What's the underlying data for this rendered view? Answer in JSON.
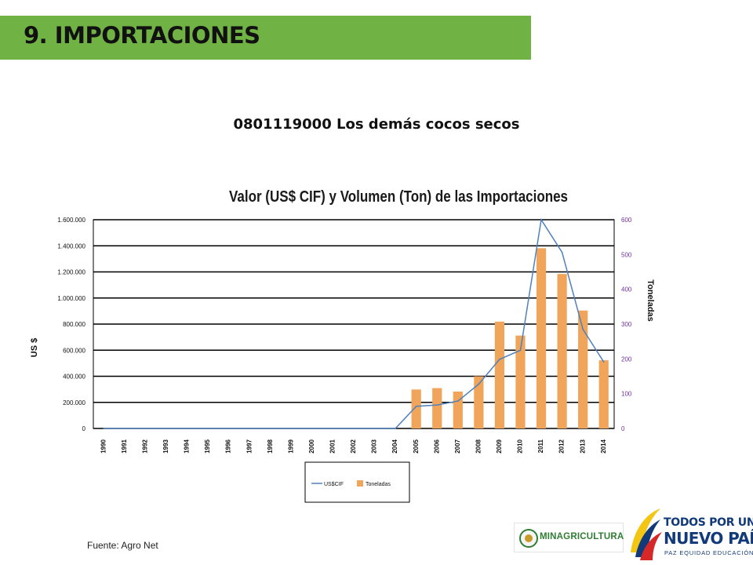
{
  "header": {
    "title": "9. IMPORTACIONES"
  },
  "subtitle": "0801119000 Los demás cocos secos",
  "chart_data": {
    "type": "bar",
    "title": "Valor (US$ CIF) y Volumen (Ton) de las Importaciones",
    "xlabel": "",
    "ylabel": "US $",
    "y2label": "Toneladas",
    "categories": [
      "1990",
      "1991",
      "1992",
      "1993",
      "1994",
      "1995",
      "1996",
      "1997",
      "1998",
      "1999",
      "2000",
      "2001",
      "2002",
      "2003",
      "2004",
      "2005",
      "2006",
      "2007",
      "2008",
      "2009",
      "2010",
      "2011",
      "2012",
      "2013",
      "2014"
    ],
    "ylim": [
      0,
      1600000
    ],
    "y2lim": [
      0,
      600
    ],
    "yticks": [
      "0",
      "200.000",
      "400.000",
      "600.000",
      "800.000",
      "1.000.000",
      "1.200.000",
      "1.400.000",
      "1.600.000"
    ],
    "y2ticks": [
      "0",
      "100",
      "200",
      "300",
      "400",
      "500",
      "600"
    ],
    "grid": true,
    "legend_position": "bottom",
    "series": [
      {
        "name": "US$CIF",
        "type": "line",
        "axis": "left",
        "color": "#4f81bd",
        "values": [
          0,
          0,
          0,
          0,
          0,
          0,
          0,
          0,
          0,
          0,
          0,
          0,
          0,
          0,
          0,
          170000,
          180000,
          210000,
          340000,
          530000,
          600000,
          1600000,
          1350000,
          760000,
          510000
        ]
      },
      {
        "name": "Toneladas",
        "type": "bar",
        "axis": "right",
        "color": "#f0a55a",
        "values": [
          0,
          0,
          0,
          0,
          0,
          0,
          0,
          0,
          0,
          0,
          0,
          0,
          0,
          0,
          0,
          112,
          116,
          106,
          150,
          307,
          267,
          518,
          444,
          339,
          196
        ]
      }
    ]
  },
  "source": "Fuente: Agro Net",
  "logos": {
    "minagri": "MINAGRICULTURA",
    "gov_line1": "TODOS POR UN",
    "gov_line2": "NUEVO PAÍS",
    "gov_line3": "PAZ  EQUIDAD  EDUCACIÓN"
  }
}
